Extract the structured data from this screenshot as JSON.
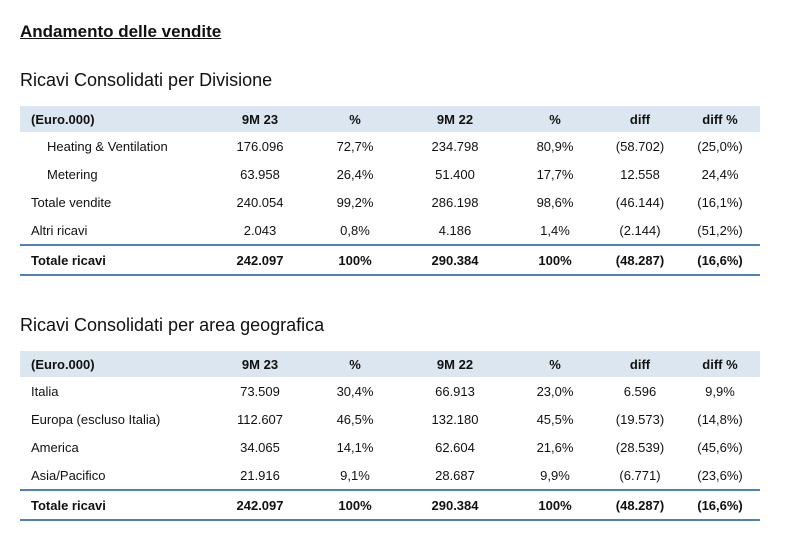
{
  "title": "Andamento delle vendite",
  "division": {
    "heading": "Ricavi Consolidati per Divisione",
    "columns": [
      "(Euro.000)",
      "9M 23",
      "%",
      "9M 22",
      "%",
      "diff",
      "diff %"
    ],
    "rows": [
      {
        "cells": [
          "Heating & Ventilation",
          "176.096",
          "72,7%",
          "234.798",
          "80,9%",
          "(58.702)",
          "(25,0%)"
        ]
      },
      {
        "cells": [
          "Metering",
          "63.958",
          "26,4%",
          "51.400",
          "17,7%",
          "12.558",
          "24,4%"
        ]
      },
      {
        "cells": [
          "Totale vendite",
          "240.054",
          "99,2%",
          "286.198",
          "98,6%",
          "(46.144)",
          "(16,1%)"
        ]
      },
      {
        "cells": [
          "Altri ricavi",
          "2.043",
          "0,8%",
          "4.186",
          "1,4%",
          "(2.144)",
          "(51,2%)"
        ]
      }
    ],
    "total": [
      "Totale ricavi",
      "242.097",
      "100%",
      "290.384",
      "100%",
      "(48.287)",
      "(16,6%)"
    ]
  },
  "geo": {
    "heading": "Ricavi Consolidati per area geografica",
    "columns": [
      "(Euro.000)",
      "9M 23",
      "%",
      "9M 22",
      "%",
      "diff",
      "diff %"
    ],
    "rows": [
      {
        "cells": [
          "Italia",
          "73.509",
          "30,4%",
          "66.913",
          "23,0%",
          "6.596",
          "9,9%"
        ]
      },
      {
        "cells": [
          "Europa (escluso Italia)",
          "112.607",
          "46,5%",
          "132.180",
          "45,5%",
          "(19.573)",
          "(14,8%)"
        ]
      },
      {
        "cells": [
          "America",
          "34.065",
          "14,1%",
          "62.604",
          "21,6%",
          "(28.539)",
          "(45,6%)"
        ]
      },
      {
        "cells": [
          "Asia/Pacifico",
          "21.916",
          "9,1%",
          "28.687",
          "9,9%",
          "(6.771)",
          "(23,6%)"
        ]
      }
    ],
    "total": [
      "Totale ricavi",
      "242.097",
      "100%",
      "290.384",
      "100%",
      "(48.287)",
      "(16,6%)"
    ]
  }
}
